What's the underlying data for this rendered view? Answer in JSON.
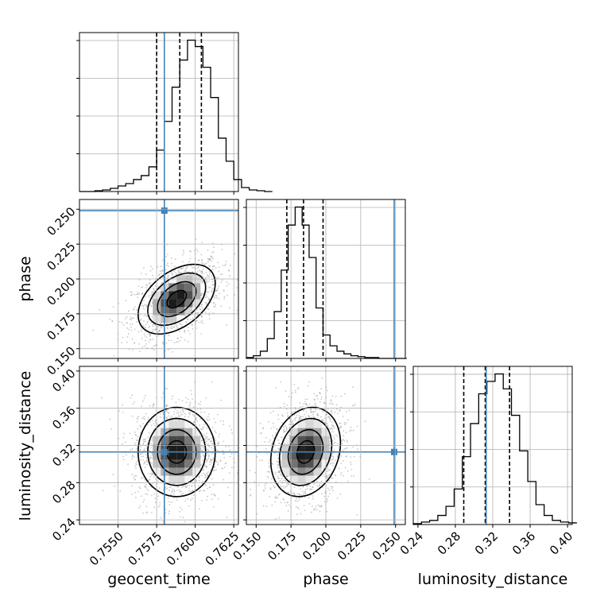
{
  "chart_data": {
    "type": "corner",
    "params": [
      "geocent_time",
      "phase",
      "luminosity_distance"
    ],
    "truths": [
      0.758,
      0.249,
      0.313
    ],
    "ranges": [
      [
        0.7525,
        0.7628
      ],
      [
        0.143,
        0.257
      ],
      [
        0.235,
        0.405
      ]
    ],
    "ticks": [
      [
        0.755,
        0.7575,
        0.76,
        0.7625
      ],
      [
        0.15,
        0.175,
        0.2,
        0.225,
        0.25
      ],
      [
        0.24,
        0.28,
        0.32,
        0.36,
        0.4
      ]
    ],
    "tick_labels": [
      [
        "0.7550",
        "0.7575",
        "0.7600",
        "0.7625"
      ],
      [
        "0.150",
        "0.175",
        "0.200",
        "0.225",
        "0.250"
      ],
      [
        "0.24",
        "0.28",
        "0.32",
        "0.36",
        "0.40"
      ]
    ],
    "quantiles": [
      [
        0.7575,
        0.759,
        0.7604
      ],
      [
        0.172,
        0.184,
        0.198
      ],
      [
        0.289,
        0.312,
        0.338
      ]
    ],
    "histograms": [
      {
        "x0": 0.7525,
        "bin": 0.0005,
        "counts": [
          0,
          0,
          1,
          2,
          4,
          7,
          10,
          15,
          20,
          31,
          52,
          88,
          131,
          165,
          190,
          182,
          156,
          118,
          67,
          38,
          15,
          5,
          2,
          1,
          0
        ]
      },
      {
        "x0": 0.143,
        "bin": 0.005,
        "counts": [
          1,
          3,
          8,
          22,
          52,
          98,
          148,
          168,
          148,
          112,
          56,
          26,
          14,
          8,
          5,
          3,
          2,
          1,
          1,
          0,
          0,
          0,
          0
        ]
      },
      {
        "x0": 0.235,
        "bin": 0.00875,
        "counts": [
          1,
          3,
          5,
          11,
          22,
          43,
          82,
          122,
          158,
          173,
          182,
          164,
          132,
          89,
          52,
          24,
          11,
          5,
          3,
          2
        ]
      }
    ],
    "posterior_2d": [
      {
        "x": 0,
        "y": 1,
        "mean": [
          0.7588,
          0.1855
        ],
        "sd": [
          0.00125,
          0.0125
        ],
        "rho": 0.45
      },
      {
        "x": 0,
        "y": 2,
        "mean": [
          0.7588,
          0.313
        ],
        "sd": [
          0.00125,
          0.024
        ],
        "rho": 0.0
      },
      {
        "x": 1,
        "y": 2,
        "mean": [
          0.1855,
          0.313
        ],
        "sd": [
          0.0125,
          0.024
        ],
        "rho": 0.2
      }
    ],
    "grid": true,
    "truth_color": "#4682b4",
    "contour_color": "#000000"
  }
}
